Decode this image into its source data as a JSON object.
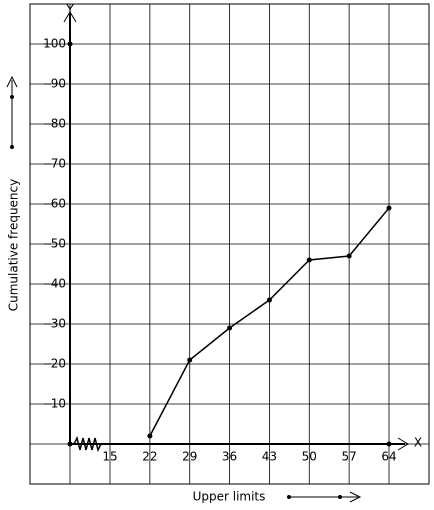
{
  "chart_data": {
    "type": "line",
    "x_label": "Upper limits",
    "y_label": "Cumulative frequency",
    "x_axis_name": "X",
    "y_axis_name": "Y",
    "x": [
      22,
      29,
      36,
      43,
      50,
      57,
      64
    ],
    "values": [
      2,
      21,
      29,
      36,
      46,
      47,
      59
    ],
    "color": "#000000",
    "xticks": [
      15,
      22,
      29,
      36,
      43,
      50,
      57,
      64
    ],
    "ylim": [
      0,
      100
    ],
    "yticks": [
      10,
      20,
      30,
      40,
      50,
      60,
      70,
      80,
      90,
      100
    ],
    "grid": true
  }
}
